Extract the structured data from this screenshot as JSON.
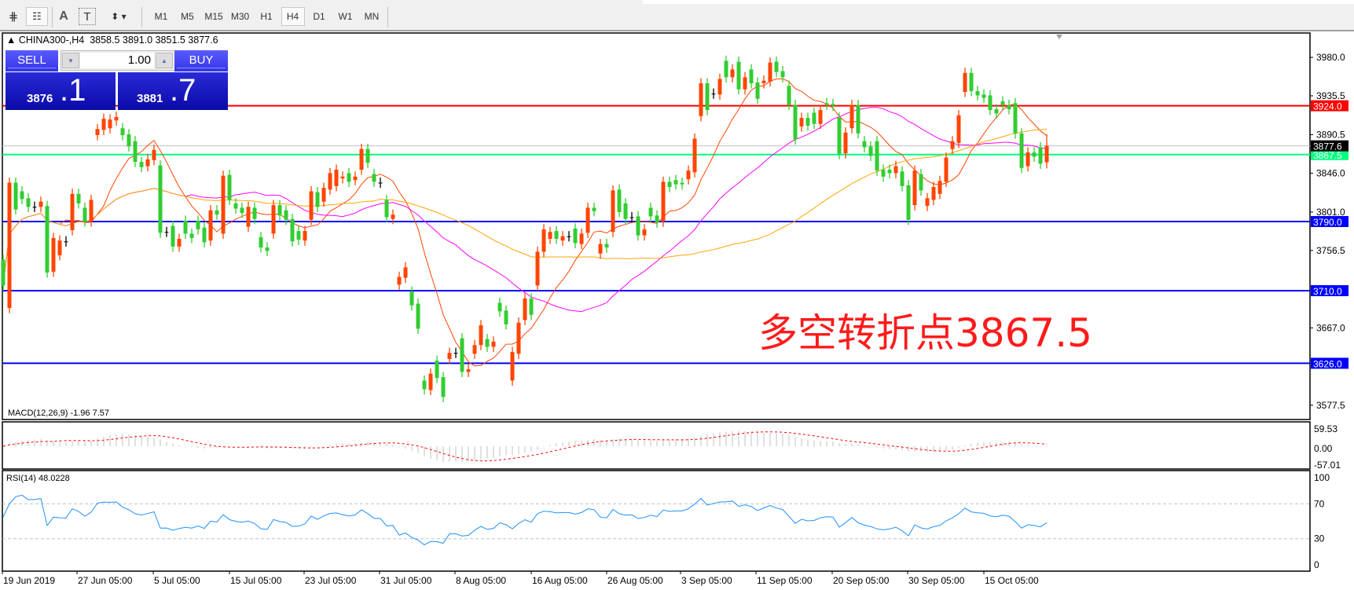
{
  "toolbar": {
    "icons": [
      "indicators-icon",
      "templates-icon",
      "text-icon",
      "text-label-icon",
      "arrows-icon"
    ],
    "text_icon_glyph": "A",
    "text_label_glyph": "T",
    "timeframes": [
      "M1",
      "M5",
      "M15",
      "M30",
      "H1",
      "H4",
      "D1",
      "W1",
      "MN"
    ],
    "active_timeframe": "H4"
  },
  "header": {
    "symbol": "CHINA300-,H4",
    "ohlc": "3858.5 3891.0 3851.5 3877.6"
  },
  "trade_panel": {
    "sell_label": "SELL",
    "buy_label": "BUY",
    "lot": "1.00",
    "sell_price_main": "3876",
    "sell_price_big": ".1",
    "buy_price_main": "3881",
    "buy_price_big": ".7"
  },
  "annotation": "多空转折点3867.5",
  "colors": {
    "up": "#ff4500",
    "down": "#32cd32",
    "ma_fast": "#ff4500",
    "ma_mid": "#ff00ff",
    "ma_slow": "#ffa500",
    "rsi": "#1e90ff",
    "macd_hist": "#c0c0c0",
    "macd_signal": "#ff0000"
  },
  "chart_data": {
    "type": "candlestick",
    "symbol": "CHINA300-",
    "timeframe": "H4",
    "ylim": [
      3555,
      4010
    ],
    "price_ticks": [
      "3980.0",
      "3935.5",
      "3890.5",
      "3846.0",
      "3801.0",
      "3756.5",
      "3667.0",
      "3577.5"
    ],
    "x_labels": [
      "19 Jun 2019",
      "27 Jun 05:00",
      "5 Jul 05:00",
      "15 Jul 05:00",
      "23 Jul 05:00",
      "31 Jul 05:00",
      "8 Aug 05:00",
      "16 Aug 05:00",
      "26 Aug 05:00",
      "3 Sep 05:00",
      "11 Sep 05:00",
      "20 Sep 05:00",
      "30 Sep 05:00",
      "15 Oct 05:00"
    ],
    "last_candle": {
      "open": 3858.5,
      "high": 3891.0,
      "low": 3851.5,
      "close": 3877.6
    },
    "current_price": {
      "value": 3877.6,
      "label": "3877.6"
    },
    "levels": [
      {
        "price": 3924.0,
        "label": "3924.0",
        "color": "#ff0000"
      },
      {
        "price": 3867.5,
        "label": "3867.5",
        "color": "#00ff7f"
      },
      {
        "price": 3790.0,
        "label": "3790.0",
        "color": "#0000ff"
      },
      {
        "price": 3710.0,
        "label": "3710.0",
        "color": "#0000ff"
      },
      {
        "price": 3626.0,
        "label": "3626.0",
        "color": "#0000ff"
      }
    ],
    "candles_open_close": [
      [
        3746,
        3716
      ],
      [
        3690,
        3835
      ],
      [
        3835,
        3804
      ],
      [
        3825,
        3816
      ],
      [
        3817,
        3807
      ],
      [
        3807,
        3807
      ],
      [
        3807,
        3813
      ],
      [
        3808,
        3731
      ],
      [
        3732,
        3771
      ],
      [
        3751,
        3768
      ],
      [
        3767,
        3767
      ],
      [
        3780,
        3822
      ],
      [
        3822,
        3811
      ],
      [
        3806,
        3790
      ],
      [
        3790,
        3815
      ],
      [
        3890,
        3897
      ],
      [
        3896,
        3909
      ],
      [
        3898,
        3908
      ],
      [
        3907,
        3911
      ],
      [
        3898,
        3890
      ],
      [
        3891,
        3877
      ],
      [
        3883,
        3859
      ],
      [
        3859,
        3853
      ],
      [
        3854,
        3862
      ],
      [
        3861,
        3873
      ],
      [
        3855,
        3777
      ],
      [
        3778,
        3778
      ],
      [
        3785,
        3761
      ],
      [
        3761,
        3770
      ],
      [
        3791,
        3776
      ],
      [
        3776,
        3771
      ],
      [
        3791,
        3781
      ],
      [
        3783,
        3766
      ],
      [
        3768,
        3803
      ],
      [
        3803,
        3798
      ],
      [
        3776,
        3843
      ],
      [
        3844,
        3815
      ],
      [
        3811,
        3805
      ],
      [
        3806,
        3800
      ],
      [
        3784,
        3807
      ],
      [
        3806,
        3793
      ],
      [
        3772,
        3760
      ],
      [
        3760,
        3756
      ],
      [
        3776,
        3809
      ],
      [
        3809,
        3797
      ],
      [
        3803,
        3792
      ],
      [
        3793,
        3767
      ],
      [
        3779,
        3769
      ],
      [
        3768,
        3779
      ],
      [
        3792,
        3825
      ],
      [
        3824,
        3807
      ],
      [
        3813,
        3829
      ],
      [
        3827,
        3846
      ],
      [
        3831,
        3850
      ],
      [
        3840,
        3842
      ],
      [
        3846,
        3836
      ],
      [
        3838,
        3842
      ],
      [
        3850,
        3874
      ],
      [
        3874,
        3858
      ],
      [
        3845,
        3836
      ],
      [
        3835,
        3835
      ],
      [
        3815,
        3795
      ],
      [
        3793,
        3798
      ],
      [
        3717,
        3726
      ],
      [
        3725,
        3737
      ],
      [
        3709,
        3693
      ],
      [
        3695,
        3666
      ],
      [
        3606,
        3596
      ],
      [
        3595,
        3614
      ],
      [
        3629,
        3609
      ],
      [
        3610,
        3587
      ],
      [
        3631,
        3638
      ],
      [
        3638,
        3638
      ],
      [
        3655,
        3616
      ],
      [
        3616,
        3619
      ],
      [
        3637,
        3647
      ],
      [
        3647,
        3670
      ],
      [
        3654,
        3645
      ],
      [
        3645,
        3651
      ],
      [
        3696,
        3686
      ],
      [
        3687,
        3671
      ],
      [
        3606,
        3639
      ],
      [
        3637,
        3673
      ],
      [
        3676,
        3701
      ],
      [
        3701,
        3682
      ],
      [
        3716,
        3755
      ],
      [
        3755,
        3781
      ],
      [
        3770,
        3778
      ],
      [
        3779,
        3770
      ],
      [
        3768,
        3773
      ],
      [
        3773,
        3773
      ],
      [
        3782,
        3765
      ],
      [
        3764,
        3776
      ],
      [
        3777,
        3806
      ],
      [
        3806,
        3802
      ],
      [
        3753,
        3764
      ],
      [
        3764,
        3760
      ],
      [
        3778,
        3826
      ],
      [
        3827,
        3801
      ],
      [
        3811,
        3793
      ],
      [
        3795,
        3795
      ],
      [
        3796,
        3774
      ],
      [
        3774,
        3781
      ],
      [
        3806,
        3796
      ],
      [
        3797,
        3789
      ],
      [
        3790,
        3836
      ],
      [
        3836,
        3830
      ],
      [
        3838,
        3833
      ],
      [
        3835,
        3833
      ],
      [
        3839,
        3849
      ],
      [
        3847,
        3886
      ],
      [
        3912,
        3950
      ],
      [
        3950,
        3919
      ],
      [
        3938,
        3938
      ],
      [
        3937,
        3955
      ],
      [
        3976,
        3957
      ],
      [
        3957,
        3966
      ],
      [
        3975,
        3943
      ],
      [
        3943,
        3957
      ],
      [
        3966,
        3950
      ],
      [
        3951,
        3932
      ],
      [
        3950,
        3953
      ],
      [
        3952,
        3974
      ],
      [
        3975,
        3963
      ],
      [
        3964,
        3957
      ],
      [
        3947,
        3925
      ],
      [
        3925,
        3885
      ],
      [
        3900,
        3910
      ],
      [
        3910,
        3901
      ],
      [
        3916,
        3903
      ],
      [
        3903,
        3919
      ],
      [
        3927,
        3925
      ],
      [
        3926,
        3924
      ],
      [
        3910,
        3868
      ],
      [
        3869,
        3893
      ],
      [
        3898,
        3925
      ],
      [
        3925,
        3892
      ],
      [
        3883,
        3876
      ],
      [
        3877,
        3866
      ],
      [
        3883,
        3849
      ],
      [
        3850,
        3842
      ],
      [
        3850,
        3846
      ],
      [
        3846,
        3854
      ],
      [
        3848,
        3831
      ],
      [
        3832,
        3792
      ],
      [
        3809,
        3849
      ],
      [
        3845,
        3826
      ],
      [
        3808,
        3817
      ],
      [
        3815,
        3830
      ],
      [
        3822,
        3837
      ],
      [
        3836,
        3864
      ],
      [
        3874,
        3883
      ],
      [
        3881,
        3913
      ],
      [
        3940,
        3962
      ],
      [
        3962,
        3941
      ],
      [
        3941,
        3936
      ],
      [
        3937,
        3933
      ],
      [
        3936,
        3919
      ],
      [
        3920,
        3915
      ],
      [
        3929,
        3925
      ],
      [
        3925,
        3920
      ],
      [
        3927,
        3892
      ],
      [
        3892,
        3852
      ],
      [
        3854,
        3870
      ],
      [
        3870,
        3865
      ],
      [
        3876,
        3857
      ],
      [
        3858.5,
        3877.6
      ]
    ],
    "macd": {
      "label": "MACD(12,26,9) -1.96 7.57",
      "ticks": [
        "59.53",
        "0.00",
        "-57.01"
      ],
      "range": [
        -57.01,
        59.53
      ]
    },
    "rsi": {
      "label": "RSI(14) 48.0228",
      "ticks": [
        "100",
        "70",
        "30",
        "0"
      ],
      "levels": [
        70,
        30
      ]
    }
  }
}
